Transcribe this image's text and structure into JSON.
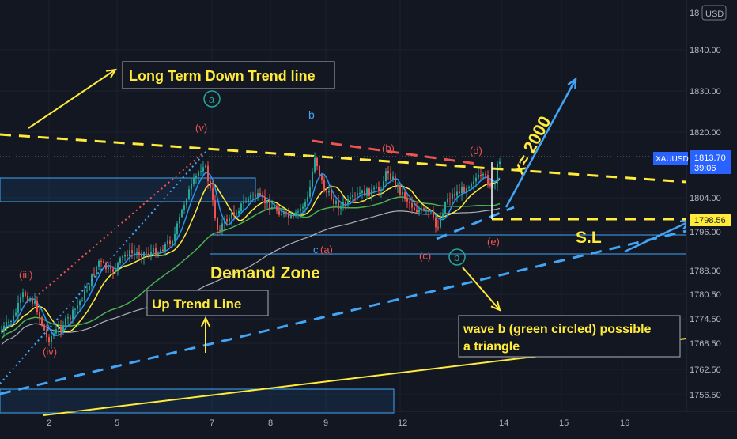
{
  "chart_data": {
    "type": "candlestick",
    "symbol": "XAUUSD",
    "currency": "USD",
    "last_price": "1813.70",
    "countdown": "39:06",
    "stop_price": "1798.56",
    "price_range": [
      1750,
      1848
    ],
    "x_ticks": [
      "2",
      "5",
      "7",
      "8",
      "9",
      "12",
      "14",
      "15",
      "16"
    ],
    "y_ticks": [
      "1840.00",
      "1830.00",
      "1820.00",
      "1804.00",
      "1796.00",
      "1788.00",
      "1780.50",
      "1774.50",
      "1768.50",
      "1762.50",
      "1756.50"
    ],
    "y_top_partial": "18",
    "colors": {
      "background": "#131722",
      "up": "#26a69a",
      "down": "#ef5350",
      "trend_yellow": "#ffeb3b",
      "trend_blue": "#42a5f5",
      "trend_red": "#ef5350",
      "ma_white": "#d1d4dc",
      "ma_green": "#4caf50",
      "ma_yellow": "#ffeb3b",
      "ma_blue": "#2196f3",
      "label_badge": "#2962ff"
    },
    "annotations": {
      "long_term_down": "Long Term Down Trend line",
      "up_trend": "Up Trend Line",
      "demand_zone": "Demand Zone",
      "sl": "S.L",
      "target": "x≈ 2000",
      "wave_b_line1": "wave b (green circled) possible",
      "wave_b_line2": "a triangle"
    },
    "wave_labels": {
      "iii": "(iii)",
      "iv": "(iv)",
      "v": "(v)",
      "a_circled": "a",
      "b_top": "b",
      "b_paren": "(b)",
      "c_blue": "c",
      "a_paren": "(a)",
      "c_paren": "(c)",
      "d_paren": "(d)",
      "e_paren": "(e)",
      "b_circled": "b"
    }
  }
}
